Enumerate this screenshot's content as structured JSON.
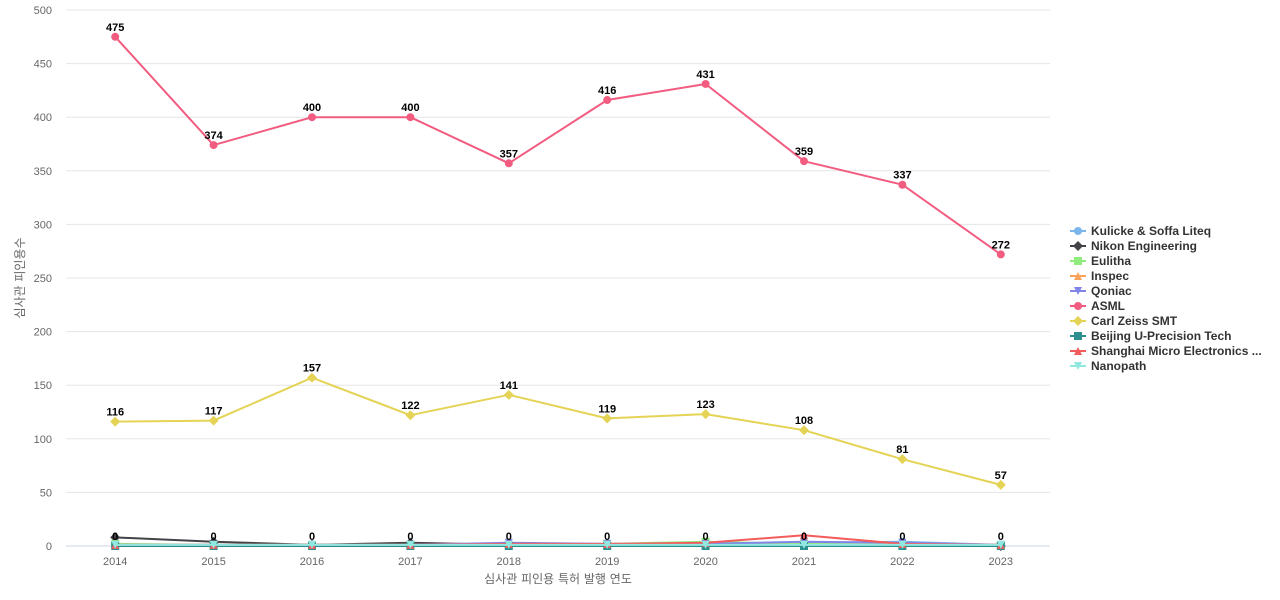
{
  "chart_data": {
    "type": "line",
    "title": "",
    "xlabel": "심사관 피인용 특허 발행 연도",
    "ylabel": "심사관 피인용수",
    "categories": [
      "2014",
      "2015",
      "2016",
      "2017",
      "2018",
      "2019",
      "2020",
      "2021",
      "2022",
      "2023"
    ],
    "ylim": [
      0,
      500
    ],
    "yticks": [
      0,
      50,
      100,
      150,
      200,
      250,
      300,
      350,
      400,
      450,
      500
    ],
    "grid": true,
    "legend_position": "right",
    "series": [
      {
        "name": "Kulicke & Soffa Liteq",
        "color": "#7cb5ec",
        "marker": "circle",
        "values": [
          1,
          1,
          1,
          1,
          2,
          1,
          1,
          3,
          4,
          1
        ]
      },
      {
        "name": "Nikon Engineering",
        "color": "#434348",
        "marker": "diamond",
        "values": [
          8,
          4,
          1,
          3,
          1,
          1,
          1,
          1,
          1,
          0
        ]
      },
      {
        "name": "Eulitha",
        "color": "#90ed7d",
        "marker": "square",
        "values": [
          2,
          1,
          1,
          1,
          1,
          2,
          4,
          2,
          1,
          1
        ]
      },
      {
        "name": "Inspec",
        "color": "#f7a35c",
        "marker": "triangle",
        "values": [
          1,
          1,
          1,
          1,
          1,
          1,
          1,
          1,
          1,
          1
        ]
      },
      {
        "name": "Qoniac",
        "color": "#8085e9",
        "marker": "triangle-down",
        "values": [
          1,
          1,
          1,
          1,
          3,
          2,
          2,
          4,
          3,
          1
        ]
      },
      {
        "name": "ASML",
        "color": "#f15c80",
        "marker": "circle",
        "values": [
          475,
          374,
          400,
          400,
          357,
          416,
          431,
          359,
          337,
          272
        ],
        "show_labels": true
      },
      {
        "name": "Carl Zeiss SMT",
        "color": "#e4d354",
        "marker": "diamond",
        "values": [
          116,
          117,
          157,
          122,
          141,
          119,
          123,
          108,
          81,
          57
        ],
        "show_labels": true
      },
      {
        "name": "Beijing U-Precision Tech",
        "color": "#2b908f",
        "marker": "square",
        "values": [
          0,
          0,
          0,
          0,
          0,
          0,
          0,
          0,
          0,
          0
        ],
        "show_labels": true
      },
      {
        "name": "Shanghai Micro Electronics ...",
        "color": "#f45b5b",
        "marker": "triangle",
        "values": [
          1,
          1,
          1,
          1,
          2,
          2,
          3,
          10,
          2,
          1
        ]
      },
      {
        "name": "Nanopath",
        "color": "#91e8e1",
        "marker": "triangle-down",
        "values": [
          1,
          1,
          1,
          1,
          1,
          1,
          1,
          1,
          1,
          1
        ]
      }
    ]
  }
}
